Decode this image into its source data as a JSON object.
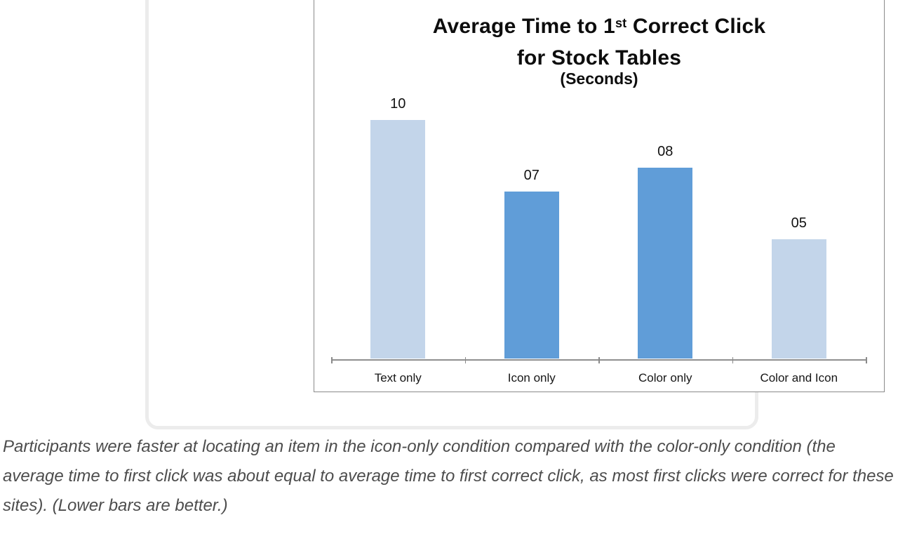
{
  "chart": {
    "title": {
      "part1": "Average Time to 1",
      "superscript": "st",
      "part2": " Correct Click",
      "line2": "for Stock Tables",
      "subtitle": "(Seconds)"
    }
  },
  "chart_data": {
    "type": "bar",
    "title": "Average Time to 1st Correct Click for Stock Tables (Seconds)",
    "categories": [
      "Text only",
      "Icon only",
      "Color only",
      "Color and Icon"
    ],
    "values": [
      10,
      7,
      8,
      5
    ],
    "value_labels": [
      "10",
      "07",
      "08",
      "05"
    ],
    "bar_colors": [
      "#c3d5ea",
      "#609dd8",
      "#609dd8",
      "#c3d5ea"
    ],
    "xlabel": "",
    "ylabel": "",
    "ylim": [
      0,
      10
    ],
    "grid": false,
    "legend": false,
    "axis_color": "#8f8f8f"
  },
  "caption": {
    "text": "Participants were faster at locating an item in the icon-only condition compared with the color-only condition (the average time to first click was about equal to average time to first correct click, as most first clicks were correct for these sites). (Lower bars are better.)"
  }
}
